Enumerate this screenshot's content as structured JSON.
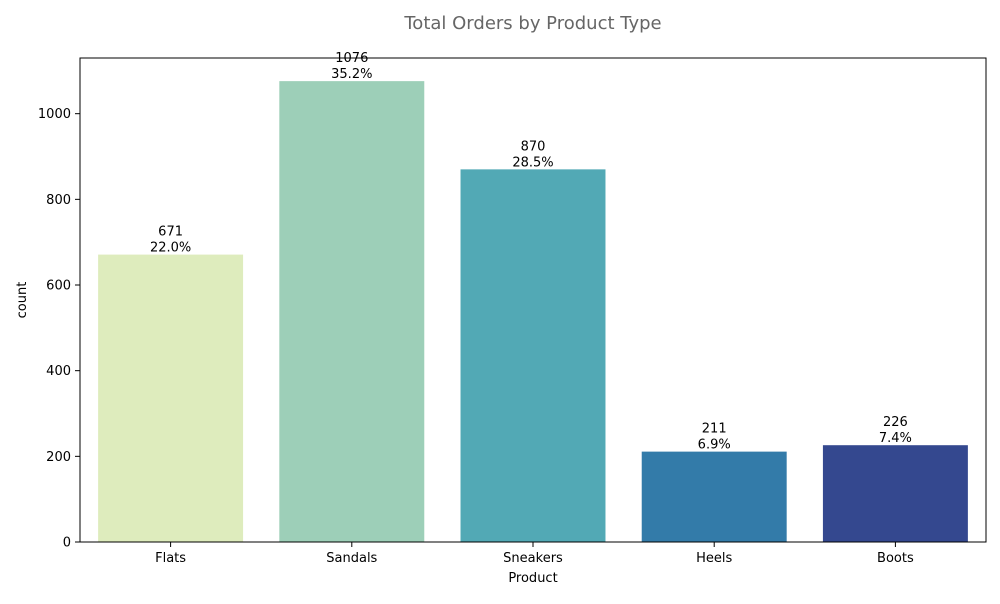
{
  "chart_data": {
    "type": "bar",
    "title": "Total Orders by Product Type",
    "xlabel": "Product",
    "ylabel": "count",
    "categories": [
      "Flats",
      "Sandals",
      "Sneakers",
      "Heels",
      "Boots"
    ],
    "values": [
      671,
      1076,
      870,
      211,
      226
    ],
    "percent_labels": [
      "22.0%",
      "35.2%",
      "28.5%",
      "6.9%",
      "7.4%"
    ],
    "colors": [
      "#deecbd",
      "#9dcfb8",
      "#52a9b5",
      "#337ba9",
      "#34488f"
    ],
    "ylim": [
      0,
      1130
    ],
    "yticks": [
      0,
      200,
      400,
      600,
      800,
      1000
    ],
    "grid": false,
    "legend": "none",
    "title_color": "#666666"
  }
}
